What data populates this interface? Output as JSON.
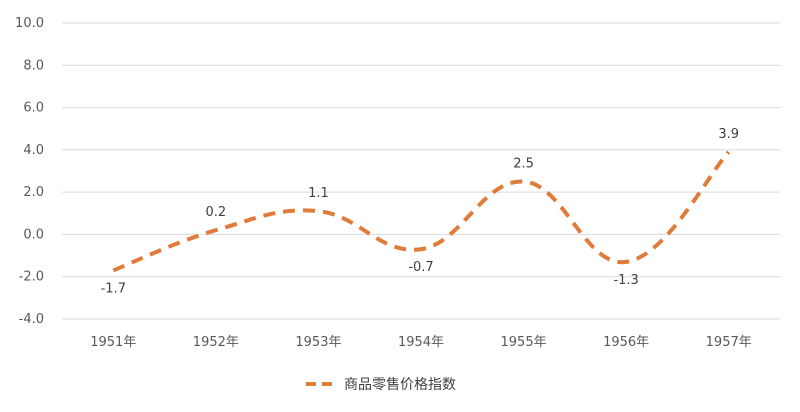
{
  "chart_data": {
    "type": "line",
    "title": "",
    "xlabel": "",
    "ylabel": "",
    "categories": [
      "1951年",
      "1952年",
      "1953年",
      "1954年",
      "1955年",
      "1956年",
      "1957年"
    ],
    "series": [
      {
        "name": "商品零售价格指数",
        "values": [
          -1.7,
          0.2,
          1.1,
          -0.7,
          2.5,
          -1.3,
          3.9
        ],
        "labels": [
          "-1.7",
          "0.2",
          "1.1",
          "-0.7",
          "2.5",
          "-1.3",
          "3.9"
        ],
        "color": "#e07b39",
        "line_style": "dashed"
      }
    ],
    "ylim": [
      -4.0,
      10.0
    ],
    "yticks": [
      "-4.0",
      "-2.0",
      "0.0",
      "2.0",
      "4.0",
      "6.0",
      "8.0",
      "10.0"
    ],
    "grid": true,
    "legend_position": "bottom-center"
  }
}
